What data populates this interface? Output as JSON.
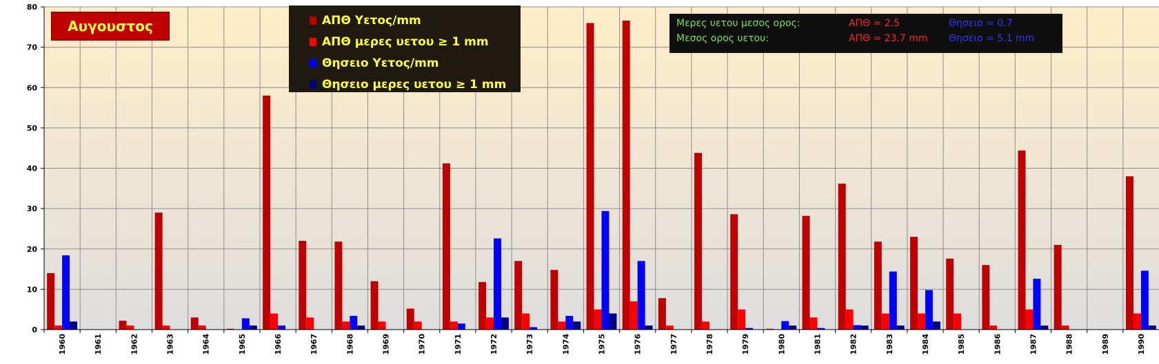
{
  "title": "Αυγουστος",
  "legend": [
    {
      "label": "ΑΠΘ Υετος/mm",
      "color": "#c00000"
    },
    {
      "label": "ΑΠΘ μερες υετου ≥ 1 mm",
      "color": "#ff0000"
    },
    {
      "label": "Θησειο Υετος/mm",
      "color": "#0000ff"
    },
    {
      "label": "Θησειο μερες υετου ≥ 1 mm",
      "color": "#000080"
    }
  ],
  "stats": {
    "days_label": "Μερες υετου μεσος ορος:",
    "days_apth": "ΑΠΘ =  2.5",
    "days_thes": "Θησειο = 0.7",
    "rain_label": "Μεσος ορος υετου:",
    "rain_apth": "ΑΠΘ = 23.7 mm",
    "rain_thes": "Θησειο = 5.1 mm"
  },
  "chart_data": {
    "type": "bar",
    "categories": [
      "1960",
      "1961",
      "1962",
      "1963",
      "1964",
      "1965",
      "1966",
      "1967",
      "1968",
      "1969",
      "1970",
      "1971",
      "1972",
      "1973",
      "1974",
      "1975",
      "1976",
      "1977",
      "1978",
      "1979",
      "1980",
      "1981",
      "1982",
      "1983",
      "1984",
      "1985",
      "1986",
      "1987",
      "1988",
      "1989",
      "1990"
    ],
    "ylim": [
      0,
      80
    ],
    "yticks": [
      "0",
      "10",
      "20",
      "30",
      "40",
      "50",
      "60",
      "70",
      "80"
    ],
    "grid": true,
    "series": [
      {
        "name": "ΑΠΘ Υετος/mm",
        "color": "#c00000",
        "values": [
          14,
          0,
          2.2,
          29,
          3,
          0.2,
          58,
          22,
          21.8,
          12,
          5.2,
          41.2,
          11.8,
          17,
          14.8,
          76,
          76.6,
          7.8,
          43.8,
          28.6,
          0.2,
          28.2,
          36.2,
          21.8,
          23,
          17.6,
          16,
          44.4,
          21,
          0,
          38
        ]
      },
      {
        "name": "ΑΠΘ μερες υετου ≥ 1 mm",
        "color": "#ff0000",
        "values": [
          1,
          0,
          1,
          1,
          1,
          0,
          4,
          3,
          2,
          2,
          2,
          2,
          3,
          4,
          2,
          5,
          7,
          1,
          2,
          5,
          0,
          3,
          5,
          4,
          4,
          4,
          1,
          5,
          1,
          0,
          4
        ]
      },
      {
        "name": "Θησειο Υετος/mm",
        "color": "#0000ff",
        "values": [
          18.4,
          0,
          0,
          0,
          0,
          2.8,
          1,
          0,
          3.4,
          0,
          0,
          1.5,
          22.6,
          0.6,
          3.4,
          29.4,
          17,
          0,
          0,
          0.4,
          2.1,
          0.4,
          1.1,
          14.4,
          9.8,
          0,
          0,
          12.6,
          0,
          0,
          14.6
        ]
      },
      {
        "name": "Θησειο μερες υετου ≥ 1 mm",
        "color": "#000080",
        "values": [
          2,
          0,
          0,
          0,
          0,
          1,
          0,
          0,
          1,
          0,
          0,
          0,
          3,
          0,
          2,
          4,
          1,
          0,
          0,
          0,
          1,
          0,
          1,
          1,
          2,
          0,
          0,
          1,
          0,
          0,
          1
        ]
      }
    ]
  }
}
